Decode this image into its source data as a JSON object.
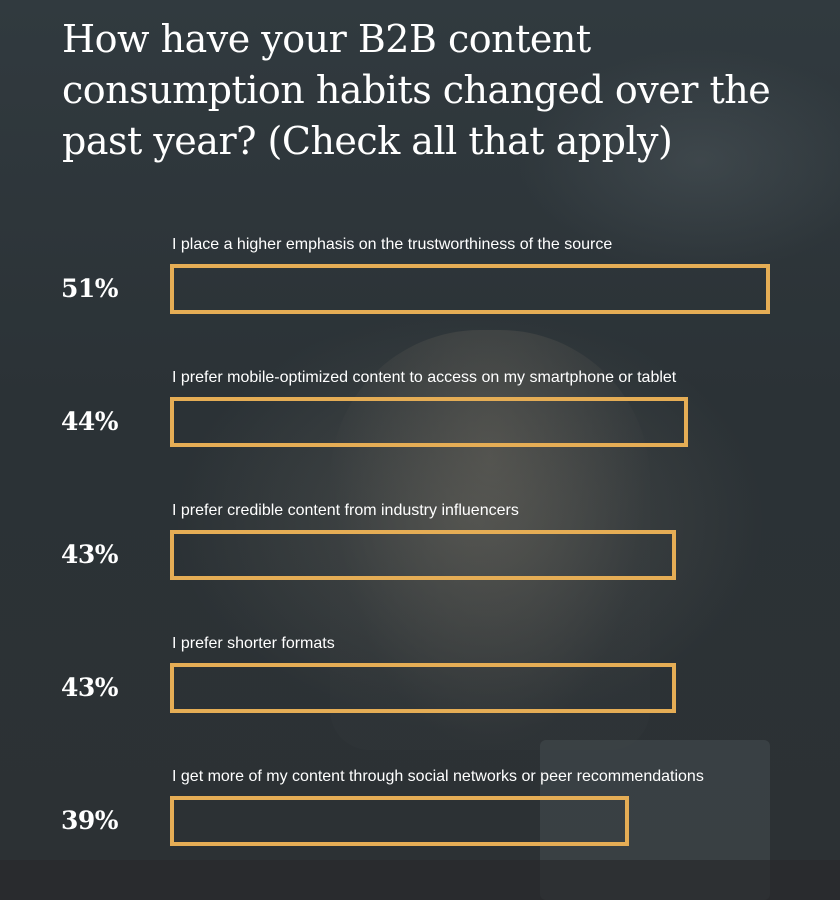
{
  "title": "How have your B2B content consumption habits changed over the past year? (Check all that apply)",
  "chart_data": {
    "type": "bar",
    "orientation": "horizontal",
    "title": "How have your B2B content consumption habits changed over the past year? (Check all that apply)",
    "value_format": "percent",
    "bar_color": "#e5ad55",
    "xlim": [
      0,
      51
    ],
    "categories": [
      "I place a higher emphasis on the trustworthiness of the source",
      "I prefer mobile-optimized content to access on my smartphone or tablet",
      "I prefer credible content from industry influencers",
      "I prefer shorter formats",
      "I get more of my content through social networks or peer recommendations"
    ],
    "values": [
      51,
      44,
      43,
      43,
      39
    ],
    "value_labels": [
      "51%",
      "44%",
      "43%",
      "43%",
      "39%"
    ]
  }
}
